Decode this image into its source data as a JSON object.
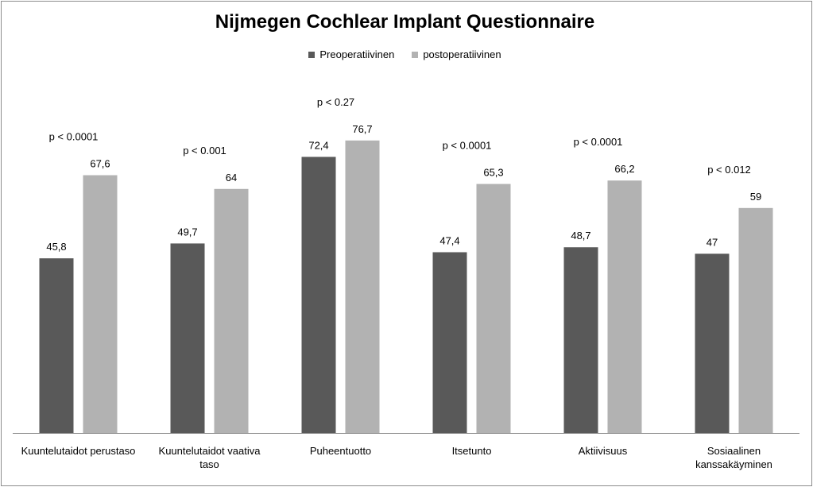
{
  "chart_data": {
    "type": "bar",
    "title": "Nijmegen Cochlear Implant Questionnaire",
    "legend_position": "top-center",
    "grid": false,
    "ylim": [
      0,
      100
    ],
    "categories": [
      [
        "Kuuntelutaidot perustaso"
      ],
      [
        "Kuuntelutaidot vaativa",
        "taso"
      ],
      [
        "Puheentuotto"
      ],
      [
        "Itsetunto"
      ],
      [
        "Aktiivisuus"
      ],
      [
        "Sosiaalinen",
        "kanssakäyminen"
      ]
    ],
    "series": [
      {
        "name": "Preoperatiivinen",
        "color": "#595959",
        "values": [
          45.8,
          49.7,
          72.4,
          47.4,
          48.7,
          47
        ],
        "labels": [
          "45,8",
          "49,7",
          "72,4",
          "47,4",
          "48,7",
          "47"
        ]
      },
      {
        "name": "postoperatiivinen",
        "color": "#b2b2b2",
        "values": [
          67.6,
          64,
          76.7,
          65.3,
          66.2,
          59
        ],
        "labels": [
          "67,6",
          "64",
          "76,7",
          "65,3",
          "66,2",
          "59"
        ]
      }
    ],
    "annotations": [
      "p < 0.0001",
      "p < 0.001",
      "p < 0.27",
      "p < 0.0001",
      "p < 0.0001",
      "p < 0.012"
    ]
  }
}
